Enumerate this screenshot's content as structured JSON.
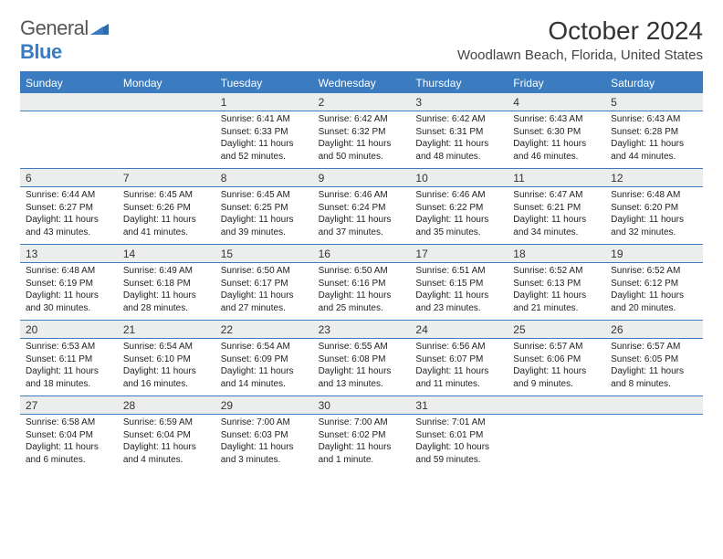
{
  "logo": {
    "text1": "General",
    "text2": "Blue"
  },
  "title": "October 2024",
  "location": "Woodlawn Beach, Florida, United States",
  "colors": {
    "accent": "#3b7bbf",
    "header_bg": "#3b7bbf",
    "daynum_bg": "#eceded"
  },
  "day_headers": [
    "Sunday",
    "Monday",
    "Tuesday",
    "Wednesday",
    "Thursday",
    "Friday",
    "Saturday"
  ],
  "weeks": [
    [
      {
        "n": "",
        "sr": "",
        "ss": "",
        "dl": ""
      },
      {
        "n": "",
        "sr": "",
        "ss": "",
        "dl": ""
      },
      {
        "n": "1",
        "sr": "Sunrise: 6:41 AM",
        "ss": "Sunset: 6:33 PM",
        "dl": "Daylight: 11 hours and 52 minutes."
      },
      {
        "n": "2",
        "sr": "Sunrise: 6:42 AM",
        "ss": "Sunset: 6:32 PM",
        "dl": "Daylight: 11 hours and 50 minutes."
      },
      {
        "n": "3",
        "sr": "Sunrise: 6:42 AM",
        "ss": "Sunset: 6:31 PM",
        "dl": "Daylight: 11 hours and 48 minutes."
      },
      {
        "n": "4",
        "sr": "Sunrise: 6:43 AM",
        "ss": "Sunset: 6:30 PM",
        "dl": "Daylight: 11 hours and 46 minutes."
      },
      {
        "n": "5",
        "sr": "Sunrise: 6:43 AM",
        "ss": "Sunset: 6:28 PM",
        "dl": "Daylight: 11 hours and 44 minutes."
      }
    ],
    [
      {
        "n": "6",
        "sr": "Sunrise: 6:44 AM",
        "ss": "Sunset: 6:27 PM",
        "dl": "Daylight: 11 hours and 43 minutes."
      },
      {
        "n": "7",
        "sr": "Sunrise: 6:45 AM",
        "ss": "Sunset: 6:26 PM",
        "dl": "Daylight: 11 hours and 41 minutes."
      },
      {
        "n": "8",
        "sr": "Sunrise: 6:45 AM",
        "ss": "Sunset: 6:25 PM",
        "dl": "Daylight: 11 hours and 39 minutes."
      },
      {
        "n": "9",
        "sr": "Sunrise: 6:46 AM",
        "ss": "Sunset: 6:24 PM",
        "dl": "Daylight: 11 hours and 37 minutes."
      },
      {
        "n": "10",
        "sr": "Sunrise: 6:46 AM",
        "ss": "Sunset: 6:22 PM",
        "dl": "Daylight: 11 hours and 35 minutes."
      },
      {
        "n": "11",
        "sr": "Sunrise: 6:47 AM",
        "ss": "Sunset: 6:21 PM",
        "dl": "Daylight: 11 hours and 34 minutes."
      },
      {
        "n": "12",
        "sr": "Sunrise: 6:48 AM",
        "ss": "Sunset: 6:20 PM",
        "dl": "Daylight: 11 hours and 32 minutes."
      }
    ],
    [
      {
        "n": "13",
        "sr": "Sunrise: 6:48 AM",
        "ss": "Sunset: 6:19 PM",
        "dl": "Daylight: 11 hours and 30 minutes."
      },
      {
        "n": "14",
        "sr": "Sunrise: 6:49 AM",
        "ss": "Sunset: 6:18 PM",
        "dl": "Daylight: 11 hours and 28 minutes."
      },
      {
        "n": "15",
        "sr": "Sunrise: 6:50 AM",
        "ss": "Sunset: 6:17 PM",
        "dl": "Daylight: 11 hours and 27 minutes."
      },
      {
        "n": "16",
        "sr": "Sunrise: 6:50 AM",
        "ss": "Sunset: 6:16 PM",
        "dl": "Daylight: 11 hours and 25 minutes."
      },
      {
        "n": "17",
        "sr": "Sunrise: 6:51 AM",
        "ss": "Sunset: 6:15 PM",
        "dl": "Daylight: 11 hours and 23 minutes."
      },
      {
        "n": "18",
        "sr": "Sunrise: 6:52 AM",
        "ss": "Sunset: 6:13 PM",
        "dl": "Daylight: 11 hours and 21 minutes."
      },
      {
        "n": "19",
        "sr": "Sunrise: 6:52 AM",
        "ss": "Sunset: 6:12 PM",
        "dl": "Daylight: 11 hours and 20 minutes."
      }
    ],
    [
      {
        "n": "20",
        "sr": "Sunrise: 6:53 AM",
        "ss": "Sunset: 6:11 PM",
        "dl": "Daylight: 11 hours and 18 minutes."
      },
      {
        "n": "21",
        "sr": "Sunrise: 6:54 AM",
        "ss": "Sunset: 6:10 PM",
        "dl": "Daylight: 11 hours and 16 minutes."
      },
      {
        "n": "22",
        "sr": "Sunrise: 6:54 AM",
        "ss": "Sunset: 6:09 PM",
        "dl": "Daylight: 11 hours and 14 minutes."
      },
      {
        "n": "23",
        "sr": "Sunrise: 6:55 AM",
        "ss": "Sunset: 6:08 PM",
        "dl": "Daylight: 11 hours and 13 minutes."
      },
      {
        "n": "24",
        "sr": "Sunrise: 6:56 AM",
        "ss": "Sunset: 6:07 PM",
        "dl": "Daylight: 11 hours and 11 minutes."
      },
      {
        "n": "25",
        "sr": "Sunrise: 6:57 AM",
        "ss": "Sunset: 6:06 PM",
        "dl": "Daylight: 11 hours and 9 minutes."
      },
      {
        "n": "26",
        "sr": "Sunrise: 6:57 AM",
        "ss": "Sunset: 6:05 PM",
        "dl": "Daylight: 11 hours and 8 minutes."
      }
    ],
    [
      {
        "n": "27",
        "sr": "Sunrise: 6:58 AM",
        "ss": "Sunset: 6:04 PM",
        "dl": "Daylight: 11 hours and 6 minutes."
      },
      {
        "n": "28",
        "sr": "Sunrise: 6:59 AM",
        "ss": "Sunset: 6:04 PM",
        "dl": "Daylight: 11 hours and 4 minutes."
      },
      {
        "n": "29",
        "sr": "Sunrise: 7:00 AM",
        "ss": "Sunset: 6:03 PM",
        "dl": "Daylight: 11 hours and 3 minutes."
      },
      {
        "n": "30",
        "sr": "Sunrise: 7:00 AM",
        "ss": "Sunset: 6:02 PM",
        "dl": "Daylight: 11 hours and 1 minute."
      },
      {
        "n": "31",
        "sr": "Sunrise: 7:01 AM",
        "ss": "Sunset: 6:01 PM",
        "dl": "Daylight: 10 hours and 59 minutes."
      },
      {
        "n": "",
        "sr": "",
        "ss": "",
        "dl": ""
      },
      {
        "n": "",
        "sr": "",
        "ss": "",
        "dl": ""
      }
    ]
  ]
}
